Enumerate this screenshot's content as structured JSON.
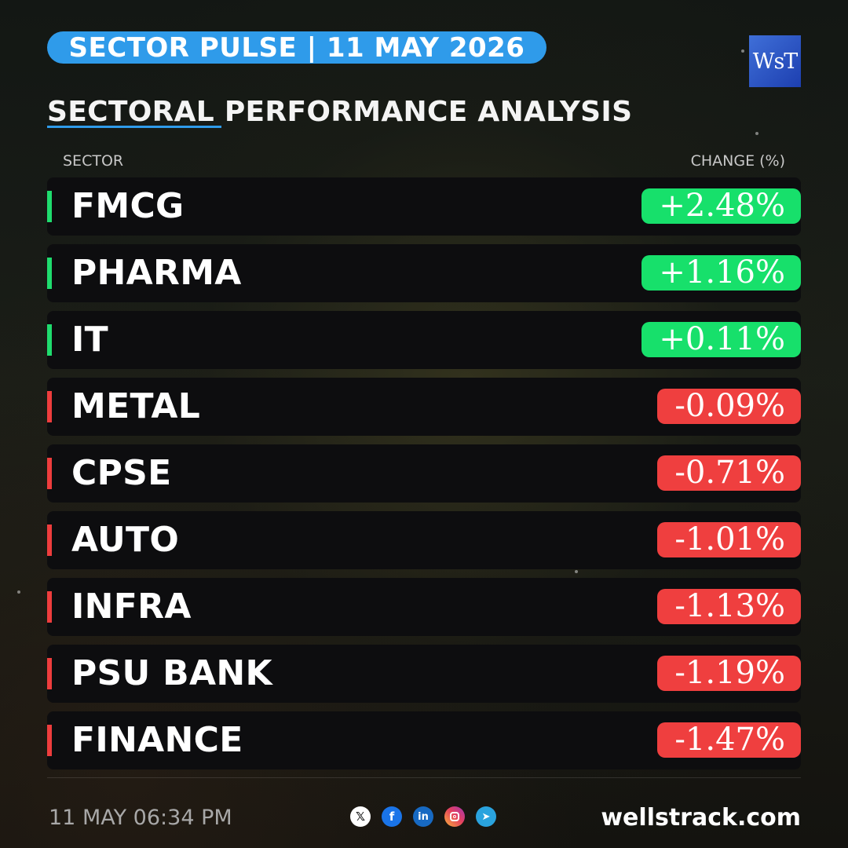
{
  "banner": {
    "title": "SECTOR PULSE | 11 MAY 2026"
  },
  "logo": {
    "text": "WsT"
  },
  "heading": "SECTORAL PERFORMANCE ANALYSIS",
  "columns": {
    "sector": "SECTOR",
    "change": "CHANGE (%)"
  },
  "rows": [
    {
      "name": "FMCG",
      "change": "+2.48%",
      "direction": "positive"
    },
    {
      "name": "PHARMA",
      "change": "+1.16%",
      "direction": "positive"
    },
    {
      "name": "IT",
      "change": "+0.11%",
      "direction": "positive"
    },
    {
      "name": "METAL",
      "change": "-0.09%",
      "direction": "negative"
    },
    {
      "name": "CPSE",
      "change": "-0.71%",
      "direction": "negative"
    },
    {
      "name": "AUTO",
      "change": "-1.01%",
      "direction": "negative"
    },
    {
      "name": "INFRA",
      "change": "-1.13%",
      "direction": "negative"
    },
    {
      "name": "PSU BANK",
      "change": "-1.19%",
      "direction": "negative"
    },
    {
      "name": "FINANCE",
      "change": "-1.47%",
      "direction": "negative"
    }
  ],
  "colors": {
    "accent": "#2f9bea",
    "positive": "#17e06b",
    "negative": "#ef3f3f"
  },
  "footer": {
    "timestamp": "11 MAY 06:34 PM",
    "socials": [
      {
        "icon": "x-icon",
        "glyph": "𝕏"
      },
      {
        "icon": "facebook-icon",
        "glyph": "f"
      },
      {
        "icon": "linkedin-icon",
        "glyph": "in"
      },
      {
        "icon": "instagram-icon",
        "glyph": ""
      },
      {
        "icon": "telegram-icon",
        "glyph": "➤"
      }
    ],
    "website": "wellstrack.com"
  }
}
